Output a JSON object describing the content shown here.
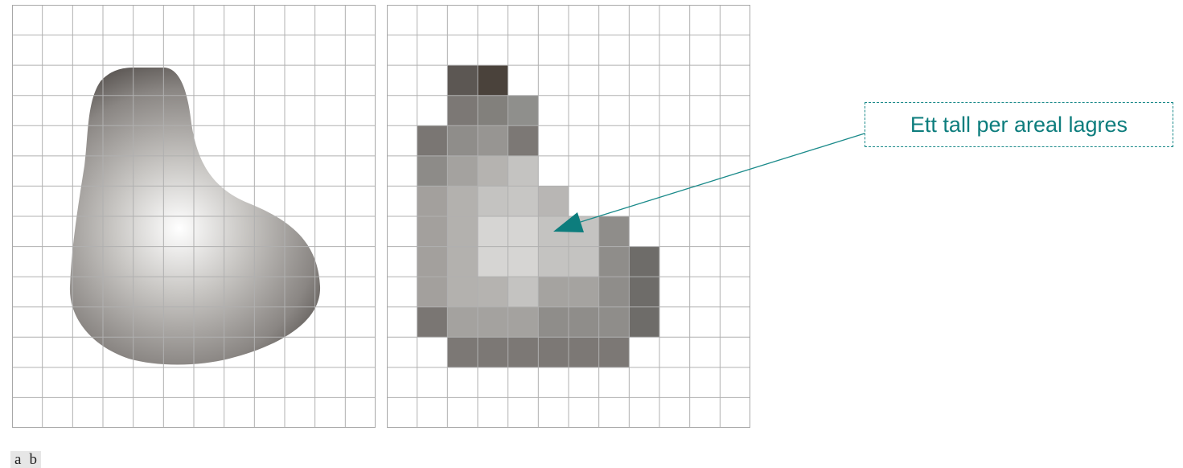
{
  "callout": {
    "text": "Ett tall per areal lagres",
    "color": "#0d7d7d"
  },
  "panel_labels": {
    "a": "a",
    "b": "b"
  },
  "grid": {
    "cols": 12,
    "rows": 14,
    "line_color": "#b0b0b0"
  },
  "raster_cells": [
    {
      "c": 2,
      "r": 2,
      "g": "#5c5753"
    },
    {
      "c": 3,
      "r": 2,
      "g": "#4a423b"
    },
    {
      "c": 2,
      "r": 3,
      "g": "#7c7875"
    },
    {
      "c": 3,
      "r": 3,
      "g": "#82807c"
    },
    {
      "c": 4,
      "r": 3,
      "g": "#8f8f8c"
    },
    {
      "c": 1,
      "r": 4,
      "g": "#7a7673"
    },
    {
      "c": 2,
      "r": 4,
      "g": "#8f8d8a"
    },
    {
      "c": 3,
      "r": 4,
      "g": "#979592"
    },
    {
      "c": 4,
      "r": 4,
      "g": "#7c7875"
    },
    {
      "c": 1,
      "r": 5,
      "g": "#8d8b88"
    },
    {
      "c": 2,
      "r": 5,
      "g": "#a4a29f"
    },
    {
      "c": 3,
      "r": 5,
      "g": "#b5b3b0"
    },
    {
      "c": 4,
      "r": 5,
      "g": "#c4c3c1"
    },
    {
      "c": 1,
      "r": 6,
      "g": "#a3a09d"
    },
    {
      "c": 2,
      "r": 6,
      "g": "#b3b1ae"
    },
    {
      "c": 3,
      "r": 6,
      "g": "#c4c3c1"
    },
    {
      "c": 4,
      "r": 6,
      "g": "#c7c6c4"
    },
    {
      "c": 5,
      "r": 6,
      "g": "#b8b6b4"
    },
    {
      "c": 1,
      "r": 7,
      "g": "#a3a09d"
    },
    {
      "c": 2,
      "r": 7,
      "g": "#b3b1ae"
    },
    {
      "c": 3,
      "r": 7,
      "g": "#d6d5d3"
    },
    {
      "c": 4,
      "r": 7,
      "g": "#d6d5d3"
    },
    {
      "c": 5,
      "r": 7,
      "g": "#c4c3c1"
    },
    {
      "c": 6,
      "r": 7,
      "g": "#c4c3c1"
    },
    {
      "c": 7,
      "r": 7,
      "g": "#8f8d8a"
    },
    {
      "c": 1,
      "r": 8,
      "g": "#a3a09d"
    },
    {
      "c": 2,
      "r": 8,
      "g": "#b3b1ae"
    },
    {
      "c": 3,
      "r": 8,
      "g": "#d6d5d3"
    },
    {
      "c": 4,
      "r": 8,
      "g": "#d6d5d3"
    },
    {
      "c": 5,
      "r": 8,
      "g": "#c4c3c1"
    },
    {
      "c": 6,
      "r": 8,
      "g": "#c4c3c1"
    },
    {
      "c": 7,
      "r": 8,
      "g": "#8f8d8a"
    },
    {
      "c": 8,
      "r": 8,
      "g": "#6e6c69"
    },
    {
      "c": 1,
      "r": 9,
      "g": "#a3a09d"
    },
    {
      "c": 2,
      "r": 9,
      "g": "#b3b1ae"
    },
    {
      "c": 3,
      "r": 9,
      "g": "#b5b3b0"
    },
    {
      "c": 4,
      "r": 9,
      "g": "#c4c3c1"
    },
    {
      "c": 5,
      "r": 9,
      "g": "#a5a3a0"
    },
    {
      "c": 6,
      "r": 9,
      "g": "#a5a3a0"
    },
    {
      "c": 7,
      "r": 9,
      "g": "#8f8d8a"
    },
    {
      "c": 8,
      "r": 9,
      "g": "#6e6c69"
    },
    {
      "c": 1,
      "r": 10,
      "g": "#7a7673"
    },
    {
      "c": 2,
      "r": 10,
      "g": "#a4a29f"
    },
    {
      "c": 3,
      "r": 10,
      "g": "#a4a29f"
    },
    {
      "c": 4,
      "r": 10,
      "g": "#a4a29f"
    },
    {
      "c": 5,
      "r": 10,
      "g": "#8f8d8a"
    },
    {
      "c": 6,
      "r": 10,
      "g": "#8f8d8a"
    },
    {
      "c": 7,
      "r": 10,
      "g": "#8f8d8a"
    },
    {
      "c": 8,
      "r": 10,
      "g": "#6e6c69"
    },
    {
      "c": 2,
      "r": 11,
      "g": "#7c7875"
    },
    {
      "c": 3,
      "r": 11,
      "g": "#7c7875"
    },
    {
      "c": 4,
      "r": 11,
      "g": "#7c7875"
    },
    {
      "c": 5,
      "r": 11,
      "g": "#7c7875"
    },
    {
      "c": 6,
      "r": 11,
      "g": "#7c7875"
    },
    {
      "c": 7,
      "r": 11,
      "g": "#7c7875"
    }
  ]
}
